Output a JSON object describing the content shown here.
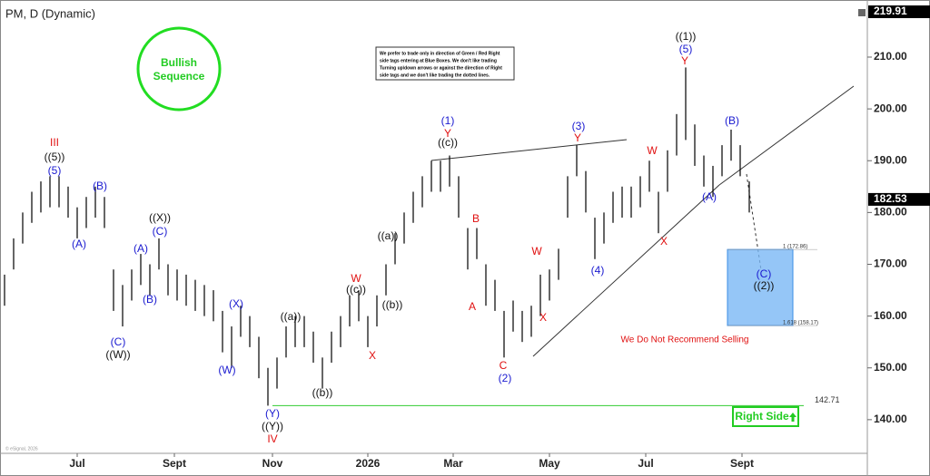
{
  "chart_data": {
    "type": "ohlc",
    "title": "PM, D (Dynamic)",
    "xlim": [
      -0.5,
      95
    ],
    "ylim": [
      133.5,
      220.15
    ],
    "xticks": [
      {
        "value": 8,
        "label": "Jul"
      },
      {
        "value": 18.7,
        "label": "Sept"
      },
      {
        "value": 29.5,
        "label": "Nov"
      },
      {
        "value": 40,
        "label": "2026"
      },
      {
        "value": 49.4,
        "label": "Mar"
      },
      {
        "value": 60,
        "label": "May"
      },
      {
        "value": 70.6,
        "label": "Jul"
      },
      {
        "value": 81.2,
        "label": "Sept"
      }
    ],
    "yticks": [
      {
        "value": 140,
        "label": "140.00"
      },
      {
        "value": 150,
        "label": "150.00"
      },
      {
        "value": 160,
        "label": "160.00"
      },
      {
        "value": 170,
        "label": "170.00"
      },
      {
        "value": 180,
        "label": "180.00"
      },
      {
        "value": 190,
        "label": "190.00"
      },
      {
        "value": 200,
        "label": "200.00"
      },
      {
        "value": 210,
        "label": "210.00"
      }
    ],
    "highs": [
      168,
      175,
      180,
      184,
      186,
      187,
      187,
      185,
      181,
      183,
      185,
      183,
      169,
      166,
      169,
      172,
      170,
      175,
      170,
      169,
      168,
      167,
      166,
      165,
      161,
      158,
      162,
      160,
      156,
      150,
      152,
      158,
      160,
      160,
      157,
      152,
      157,
      160,
      164,
      165,
      160,
      164,
      170,
      176,
      180,
      184,
      187,
      190,
      190,
      191,
      187,
      177,
      177,
      170,
      167,
      161,
      163,
      161,
      162,
      168,
      169,
      173,
      187,
      193,
      188,
      179,
      180,
      184,
      185,
      185,
      187,
      190,
      184,
      192,
      199,
      208,
      197,
      191,
      189,
      193,
      196,
      193,
      186
    ],
    "lows": [
      162,
      169,
      174,
      178,
      180,
      181,
      181,
      179,
      175,
      177,
      179,
      177,
      161,
      158,
      163,
      166,
      164,
      169,
      164,
      163,
      162,
      161,
      160,
      159,
      153,
      150,
      156,
      154,
      148,
      142.7,
      146,
      152,
      154,
      154,
      151,
      146,
      151,
      154,
      158,
      159,
      154,
      158,
      164,
      170,
      174,
      178,
      181,
      184,
      184,
      185,
      179,
      169,
      171,
      162,
      161,
      152,
      157,
      155,
      156,
      160,
      163,
      167,
      179,
      187,
      180,
      171,
      174,
      178,
      179,
      179,
      181,
      184,
      176,
      184,
      191,
      194,
      189,
      185,
      183,
      187,
      190,
      187,
      180
    ],
    "color": "#000000",
    "last_price": {
      "value": 182.53,
      "label": "182.53"
    },
    "high_label": "219.91",
    "support": {
      "value": 142.71,
      "label": "142.71",
      "color": "#33cc33"
    },
    "fib": [
      {
        "value": 172.86,
        "label": "1 (172.86)"
      },
      {
        "value": 158.17,
        "label": "1.618 (158.17)"
      }
    ],
    "fib_color": "#7ab8f5",
    "annotations": [
      {
        "text": "III",
        "color": "#e01010"
      },
      {
        "text": "((5))",
        "color": "#111111"
      },
      {
        "text": "(5)",
        "color": "#1a1ad0"
      },
      {
        "text": "(B)",
        "color": "#1a1ad0"
      },
      {
        "text": "(A)",
        "color": "#1a1ad0"
      },
      {
        "text": "((X))",
        "color": "#111111"
      },
      {
        "text": "(C)",
        "color": "#1a1ad0"
      },
      {
        "text": "(A)",
        "color": "#1a1ad0"
      },
      {
        "text": "(B)",
        "color": "#1a1ad0"
      },
      {
        "text": "(C)",
        "color": "#1a1ad0"
      },
      {
        "text": "((W))",
        "color": "#111111"
      },
      {
        "text": "(X)",
        "color": "#1a1ad0"
      },
      {
        "text": "(W)",
        "color": "#1a1ad0"
      },
      {
        "text": "((a))",
        "color": "#111111"
      },
      {
        "text": "(Y)",
        "color": "#1a1ad0"
      },
      {
        "text": "((Y))",
        "color": "#111111"
      },
      {
        "text": "IV",
        "color": "#e01010"
      },
      {
        "text": "((b))",
        "color": "#111111"
      },
      {
        "text": "W",
        "color": "#e01010"
      },
      {
        "text": "((c))",
        "color": "#111111"
      },
      {
        "text": "X",
        "color": "#e01010"
      },
      {
        "text": "((a))",
        "color": "#111111"
      },
      {
        "text": "((b))",
        "color": "#111111"
      },
      {
        "text": "(1)",
        "color": "#1a1ad0"
      },
      {
        "text": "Y",
        "color": "#e01010"
      },
      {
        "text": "((c))",
        "color": "#111111"
      },
      {
        "text": "B",
        "color": "#e01010"
      },
      {
        "text": "A",
        "color": "#e01010"
      },
      {
        "text": "C",
        "color": "#e01010"
      },
      {
        "text": "(2)",
        "color": "#1a1ad0"
      },
      {
        "text": "W",
        "color": "#e01010"
      },
      {
        "text": "X",
        "color": "#e01010"
      },
      {
        "text": "(3)",
        "color": "#1a1ad0"
      },
      {
        "text": "Y",
        "color": "#e01010"
      },
      {
        "text": "(4)",
        "color": "#1a1ad0"
      },
      {
        "text": "W",
        "color": "#e01010"
      },
      {
        "text": "X",
        "color": "#e01010"
      },
      {
        "text": "((1))",
        "color": "#111111"
      },
      {
        "text": "(5)",
        "color": "#1a1ad0"
      },
      {
        "text": "Y",
        "color": "#e01010"
      },
      {
        "text": "(A)",
        "color": "#1a1ad0"
      },
      {
        "text": "(B)",
        "color": "#1a1ad0"
      },
      {
        "text": "(C)",
        "color": "#1a1ad0"
      },
      {
        "text": "((2))",
        "color": "#111111"
      }
    ],
    "bullish": [
      "Bullish",
      "Sequence"
    ],
    "notice": [
      "We prefer to trade only in direction of Green / Red Right",
      "side tags entering at Blue Boxes. We don't like trading",
      "Turning up\\down arrows or against the direction of Right",
      "side tags and we don't like trading the dotted lines."
    ],
    "warning": "We Do Not Recommend Selling",
    "right_side": "Right Side",
    "footer": "© eSignal, 2026"
  }
}
